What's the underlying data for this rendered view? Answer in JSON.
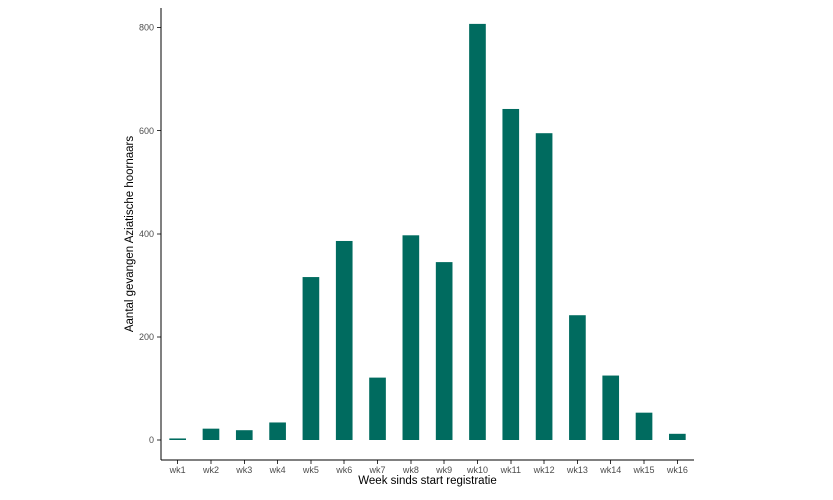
{
  "chart_data": {
    "type": "bar",
    "title": "",
    "xlabel": "Week sinds start registratie",
    "ylabel": "Aantal gevangen Aziatische hoornaars",
    "categories": [
      "wk1",
      "wk2",
      "wk3",
      "wk4",
      "wk5",
      "wk6",
      "wk7",
      "wk8",
      "wk9",
      "wk10",
      "wk11",
      "wk12",
      "wk13",
      "wk14",
      "wk15",
      "wk16"
    ],
    "values": [
      3,
      22,
      19,
      34,
      316,
      386,
      121,
      397,
      345,
      807,
      642,
      595,
      242,
      125,
      53,
      12
    ],
    "ylim": [
      0,
      830
    ],
    "yticks": [
      0,
      200,
      400,
      600,
      800
    ],
    "ytick_labels": [
      "0",
      "200",
      "400",
      "600",
      "800"
    ],
    "bar_color": "#006b5f",
    "grid": false,
    "legend": "none"
  }
}
